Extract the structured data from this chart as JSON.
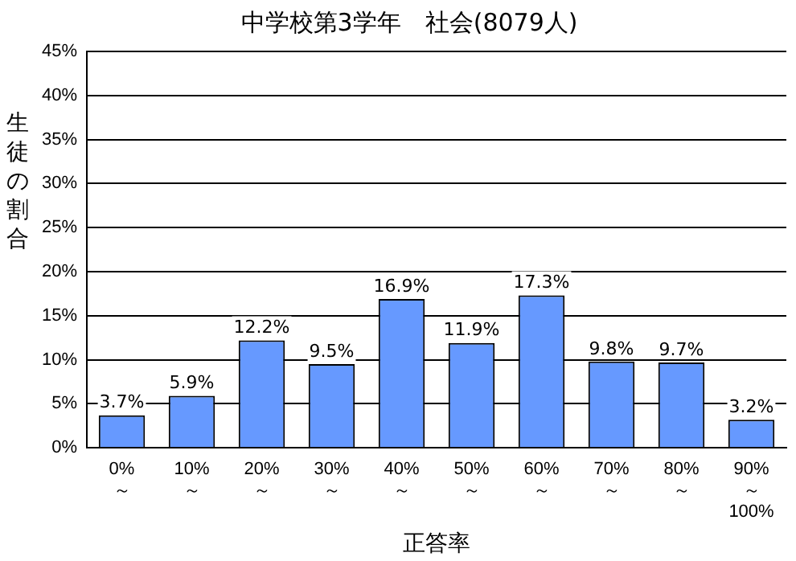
{
  "chart_data": {
    "type": "bar",
    "title": "中学校第3学年　社会(8079人)",
    "xlabel": "正答率",
    "ylabel": "生徒の割合",
    "categories": [
      "0%\n～",
      "10%\n～",
      "20%\n～",
      "30%\n～",
      "40%\n～",
      "50%\n～",
      "60%\n～",
      "70%\n～",
      "80%\n～",
      "90%\n～\n100%"
    ],
    "values": [
      3.7,
      5.9,
      12.2,
      9.5,
      16.9,
      11.9,
      17.3,
      9.8,
      9.7,
      3.2
    ],
    "value_labels": [
      "3.7%",
      "5.9%",
      "12.2%",
      "9.5%",
      "16.9%",
      "11.9%",
      "17.3%",
      "9.8%",
      "9.7%",
      "3.2%"
    ],
    "color": "#6699ff",
    "ylim": [
      0,
      45
    ],
    "yticks": [
      {
        "value": 0,
        "label": "0%"
      },
      {
        "value": 5,
        "label": "5%"
      },
      {
        "value": 10,
        "label": "10%"
      },
      {
        "value": 15,
        "label": "15%"
      },
      {
        "value": 20,
        "label": "20%"
      },
      {
        "value": 25,
        "label": "25%"
      },
      {
        "value": 30,
        "label": "30%"
      },
      {
        "value": 35,
        "label": "35%"
      },
      {
        "value": 40,
        "label": "40%"
      },
      {
        "value": 45,
        "label": "45%"
      }
    ],
    "grid": "y",
    "legend": false
  }
}
